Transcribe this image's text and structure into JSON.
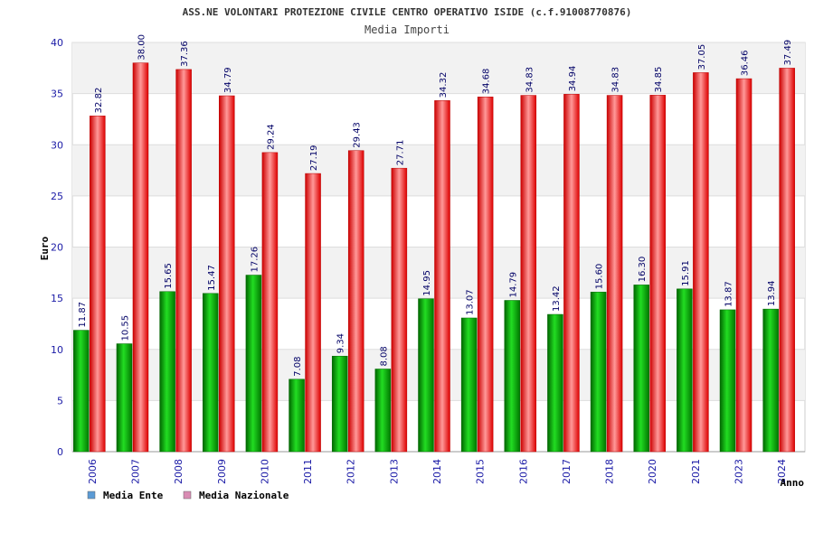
{
  "chart_data": {
    "type": "bar",
    "title": "ASS.NE VOLONTARI PROTEZIONE CIVILE CENTRO OPERATIVO ISIDE (c.f.91008770876)",
    "subtitle": "Media Importi",
    "xlabel": "Anno",
    "ylabel": "Euro",
    "ylim": [
      0,
      40
    ],
    "yticks": [
      0,
      5,
      10,
      15,
      20,
      25,
      30,
      35,
      40
    ],
    "grid": true,
    "legend_position": "bottom-left",
    "categories": [
      "2006",
      "2007",
      "2008",
      "2009",
      "2010",
      "2011",
      "2012",
      "2013",
      "2014",
      "2015",
      "2016",
      "2017",
      "2018",
      "2020",
      "2021",
      "2023",
      "2024"
    ],
    "series": [
      {
        "name": "Media Ente",
        "color": "#00aa00",
        "legend_color": "#5b9bd5",
        "values": [
          11.87,
          10.55,
          15.65,
          15.47,
          17.26,
          7.08,
          9.34,
          8.08,
          14.95,
          13.07,
          14.79,
          13.42,
          15.6,
          16.3,
          15.91,
          13.87,
          13.94
        ],
        "labels": [
          "11.87",
          "10.55",
          "15.65",
          "15.47",
          "17.26",
          "7.08",
          "9.34",
          "8.08",
          "14.95",
          "13.07",
          "14.79",
          "13.42",
          "15.60",
          "16.30",
          "15.91",
          "13.87",
          "13.94"
        ]
      },
      {
        "name": "Media Nazionale",
        "color": "#ee1111",
        "legend_color": "#d98cb3",
        "values": [
          32.82,
          38.0,
          37.36,
          34.79,
          29.24,
          27.19,
          29.43,
          27.71,
          34.32,
          34.68,
          34.83,
          34.94,
          34.83,
          34.85,
          37.05,
          36.46,
          37.49
        ],
        "labels": [
          "32.82",
          "38.00",
          "37.36",
          "34.79",
          "29.24",
          "27.19",
          "29.43",
          "27.71",
          "34.32",
          "34.68",
          "34.83",
          "34.94",
          "34.83",
          "34.85",
          "37.05",
          "36.46",
          "37.49"
        ]
      }
    ]
  }
}
